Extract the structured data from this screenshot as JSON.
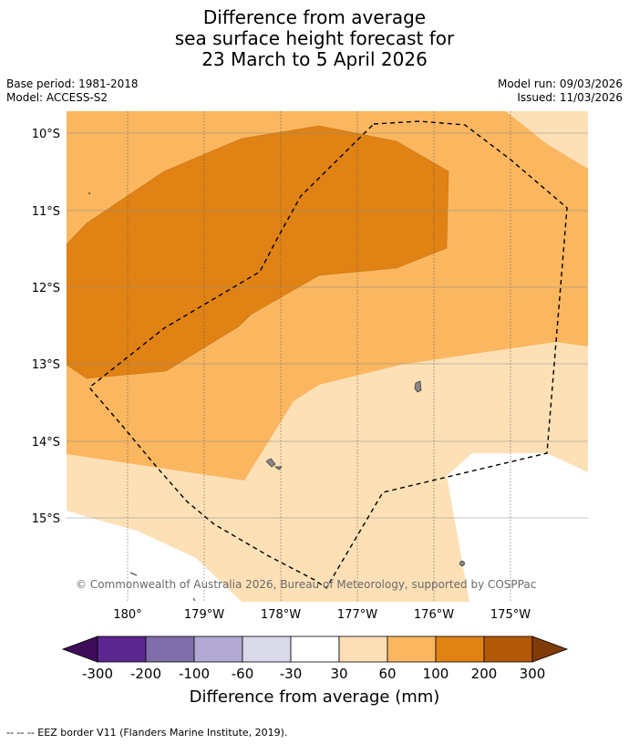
{
  "title": {
    "line1": "Difference from average",
    "line2": "sea surface height forecast for",
    "line3": "23 March to 5 April 2026"
  },
  "meta": {
    "base_period": "Base period: 1981-2018",
    "model": "Model: ACCESS-S2",
    "model_run": "Model run: 09/03/2026",
    "issued": "Issued: 11/03/2026"
  },
  "map": {
    "lat_labels": [
      "10°S",
      "11°S",
      "12°S",
      "13°S",
      "14°S",
      "15°S"
    ],
    "lon_labels": [
      "180°",
      "179°W",
      "178°W",
      "177°W",
      "176°W",
      "175°W"
    ],
    "copyright": "© Commonwealth of Australia 2026, Bureau of Meteorology, supported by COSPPac"
  },
  "colorbar": {
    "ticks": [
      "-300",
      "-200",
      "-100",
      "-60",
      "-30",
      "30",
      "60",
      "100",
      "200",
      "300"
    ],
    "colors": [
      "#3f0d59",
      "#5c2690",
      "#7e6eaa",
      "#b2a9d2",
      "#d9d9ea",
      "#ffffff",
      "#fde0b6",
      "#fbb660",
      "#e08214",
      "#b35806",
      "#7f3b08"
    ],
    "label": "Difference from average (mm)"
  },
  "legend": {
    "eez": "--  --  -- EEZ border V11 (Flanders Marine Institute, 2019)."
  }
}
